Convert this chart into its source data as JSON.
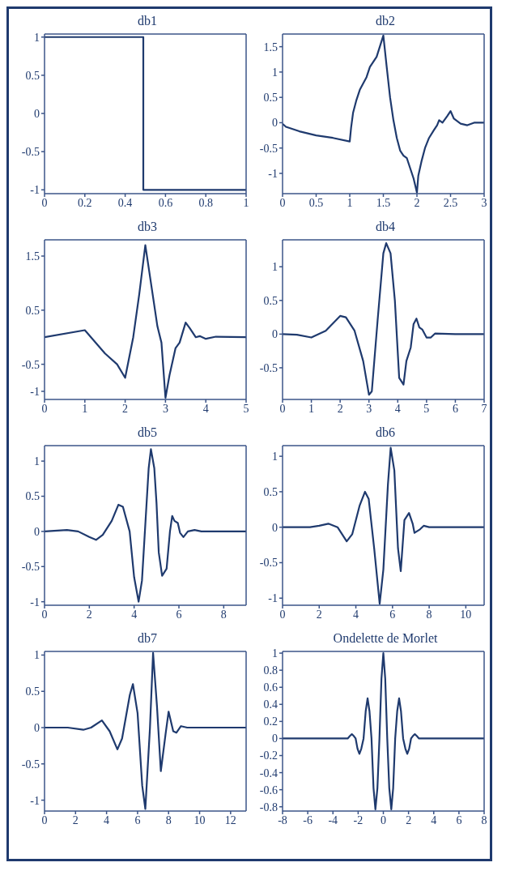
{
  "chart_data": [
    {
      "type": "line",
      "title": "db1",
      "color": "#1f3a6e",
      "xlim": [
        0,
        1
      ],
      "xticks": [
        0,
        0.2,
        0.4,
        0.6,
        0.8,
        1
      ],
      "ylim": [
        -1.05,
        1.04
      ],
      "yticks": [
        -1,
        -0.5,
        0,
        0.5,
        1
      ],
      "x": [
        0,
        0.49,
        0.49,
        1
      ],
      "values": [
        1,
        1,
        -1,
        -1
      ]
    },
    {
      "type": "line",
      "title": "db2",
      "color": "#1f3a6e",
      "xlim": [
        0,
        3
      ],
      "xticks": [
        0,
        0.5,
        1,
        1.5,
        2,
        2.5,
        3
      ],
      "ylim": [
        -1.4,
        1.75
      ],
      "yticks": [
        -1,
        -0.5,
        0,
        0.5,
        1,
        1.5
      ],
      "x": [
        0,
        0.05,
        0.25,
        0.5,
        0.75,
        1,
        1.02,
        1.05,
        1.1,
        1.15,
        1.25,
        1.3,
        1.4,
        1.5,
        1.55,
        1.6,
        1.65,
        1.7,
        1.75,
        1.8,
        1.85,
        1.9,
        1.95,
        2,
        2.02,
        2.07,
        2.12,
        2.18,
        2.25,
        2.3,
        2.33,
        2.38,
        2.45,
        2.5,
        2.55,
        2.65,
        2.75,
        2.85,
        3
      ],
      "values": [
        -0.02,
        -0.08,
        -0.17,
        -0.25,
        -0.3,
        -0.37,
        -0.1,
        0.2,
        0.45,
        0.65,
        0.9,
        1.1,
        1.3,
        1.72,
        1.1,
        0.5,
        0.05,
        -0.3,
        -0.55,
        -0.65,
        -0.7,
        -0.9,
        -1.1,
        -1.38,
        -1.05,
        -0.75,
        -0.5,
        -0.3,
        -0.15,
        -0.05,
        0.05,
        0,
        0.13,
        0.23,
        0.08,
        -0.02,
        -0.05,
        0,
        0
      ]
    },
    {
      "type": "line",
      "title": "db3",
      "color": "#1f3a6e",
      "xlim": [
        0,
        5
      ],
      "xticks": [
        0,
        1,
        2,
        3,
        4,
        5
      ],
      "ylim": [
        -1.15,
        1.8
      ],
      "yticks": [
        -1,
        -0.5,
        0.5,
        1.5
      ],
      "x": [
        0,
        1,
        1.5,
        1.8,
        2,
        2.2,
        2.35,
        2.5,
        2.7,
        2.8,
        2.9,
        3,
        3.1,
        3.25,
        3.35,
        3.5,
        3.6,
        3.75,
        3.85,
        4,
        4.25,
        5
      ],
      "values": [
        0,
        0.13,
        -0.3,
        -0.5,
        -0.75,
        0,
        0.8,
        1.7,
        0.7,
        0.2,
        -0.1,
        -1.12,
        -0.7,
        -0.2,
        -0.1,
        0.27,
        0.17,
        0,
        0.02,
        -0.03,
        0.01,
        0
      ]
    },
    {
      "type": "line",
      "title": "db4",
      "color": "#1f3a6e",
      "xlim": [
        0,
        7
      ],
      "xticks": [
        0,
        1,
        2,
        3,
        4,
        5,
        6,
        7
      ],
      "ylim": [
        -0.97,
        1.4
      ],
      "yticks": [
        -0.5,
        0,
        0.5,
        1
      ],
      "x": [
        0,
        0.5,
        1,
        1.5,
        2,
        2.2,
        2.5,
        2.8,
        3,
        3.1,
        3.3,
        3.5,
        3.6,
        3.75,
        3.9,
        4.05,
        4.2,
        4.3,
        4.45,
        4.55,
        4.65,
        4.75,
        4.85,
        5,
        5.15,
        5.3,
        6,
        7
      ],
      "values": [
        0,
        -0.01,
        -0.05,
        0.05,
        0.27,
        0.25,
        0.05,
        -0.4,
        -0.9,
        -0.85,
        0.2,
        1.2,
        1.35,
        1.2,
        0.5,
        -0.65,
        -0.75,
        -0.4,
        -0.2,
        0.15,
        0.23,
        0.1,
        0.07,
        -0.05,
        -0.05,
        0.01,
        0,
        0
      ]
    },
    {
      "type": "line",
      "title": "db5",
      "color": "#1f3a6e",
      "xlim": [
        0,
        9
      ],
      "xticks": [
        0,
        2,
        4,
        6,
        8
      ],
      "ylim": [
        -1.05,
        1.22
      ],
      "yticks": [
        -1,
        -0.5,
        0,
        0.5,
        1
      ],
      "x": [
        0,
        1,
        1.5,
        2,
        2.3,
        2.6,
        3,
        3.3,
        3.5,
        3.8,
        4,
        4.2,
        4.35,
        4.5,
        4.65,
        4.75,
        4.9,
        5,
        5.1,
        5.25,
        5.45,
        5.6,
        5.7,
        5.8,
        5.95,
        6.05,
        6.2,
        6.4,
        6.7,
        7,
        9
      ],
      "values": [
        0,
        0.02,
        0,
        -0.08,
        -0.12,
        -0.05,
        0.15,
        0.38,
        0.35,
        0,
        -0.65,
        -1,
        -0.7,
        0.1,
        0.9,
        1.17,
        0.9,
        0.4,
        -0.3,
        -0.63,
        -0.53,
        0,
        0.22,
        0.15,
        0.12,
        -0.02,
        -0.08,
        0,
        0.02,
        0,
        0
      ]
    },
    {
      "type": "line",
      "title": "db6",
      "color": "#1f3a6e",
      "xlim": [
        0,
        11
      ],
      "xticks": [
        0,
        2,
        4,
        6,
        8,
        10
      ],
      "ylim": [
        -1.1,
        1.15
      ],
      "yticks": [
        -1,
        -0.5,
        0,
        0.5,
        1
      ],
      "x": [
        0,
        1.5,
        2,
        2.5,
        3,
        3.5,
        3.8,
        4.2,
        4.5,
        4.7,
        5,
        5.3,
        5.5,
        5.75,
        5.9,
        6.1,
        6.3,
        6.45,
        6.65,
        6.9,
        7.1,
        7.2,
        7.5,
        7.7,
        8,
        11
      ],
      "values": [
        0,
        0,
        0.02,
        0.05,
        0,
        -0.2,
        -0.1,
        0.3,
        0.5,
        0.4,
        -0.3,
        -1.08,
        -0.6,
        0.6,
        1.12,
        0.8,
        -0.3,
        -0.62,
        0.1,
        0.2,
        0.05,
        -0.08,
        -0.03,
        0.02,
        0,
        0
      ]
    },
    {
      "type": "line",
      "title": "db7",
      "color": "#1f3a6e",
      "xlim": [
        0,
        13
      ],
      "xticks": [
        0,
        2,
        4,
        6,
        8,
        10,
        12
      ],
      "ylim": [
        -1.15,
        1.05
      ],
      "yticks": [
        -1,
        -0.5,
        0,
        0.5,
        1
      ],
      "x": [
        0,
        1.5,
        2.5,
        3,
        3.7,
        4.2,
        4.7,
        5,
        5.5,
        5.7,
        6,
        6.3,
        6.5,
        6.8,
        7,
        7.25,
        7.5,
        7.8,
        8,
        8.3,
        8.5,
        8.8,
        9.2,
        13
      ],
      "values": [
        0,
        0,
        -0.03,
        0,
        0.1,
        -0.05,
        -0.3,
        -0.15,
        0.45,
        0.6,
        0.2,
        -0.8,
        -1.12,
        0,
        1.03,
        0.3,
        -0.6,
        -0.1,
        0.22,
        -0.05,
        -0.07,
        0.02,
        0,
        0
      ]
    },
    {
      "type": "line",
      "title": "Ondelette de Morlet",
      "color": "#1f3a6e",
      "xlim": [
        -8,
        8
      ],
      "xticks": [
        -8,
        -6,
        -4,
        -2,
        0,
        2,
        4,
        6,
        8
      ],
      "ylim": [
        -0.85,
        1.02
      ],
      "yticks": [
        -0.8,
        -0.6,
        -0.4,
        -0.2,
        0,
        0.2,
        0.4,
        0.6,
        0.8,
        1
      ],
      "x": [
        -8,
        -3.2,
        -2.83,
        -2.65,
        -2.5,
        -2.35,
        -2.2,
        -2.05,
        -1.9,
        -1.75,
        -1.57,
        -1.4,
        -1.25,
        -1.1,
        -0.94,
        -0.78,
        -0.63,
        -0.47,
        -0.31,
        -0.15,
        0,
        0.15,
        0.31,
        0.47,
        0.63,
        0.78,
        0.94,
        1.1,
        1.25,
        1.4,
        1.57,
        1.75,
        1.9,
        2.05,
        2.2,
        2.35,
        2.5,
        2.65,
        2.83,
        3.2,
        8
      ],
      "values": [
        0,
        0,
        0,
        0.03,
        0.05,
        0.03,
        0,
        -0.12,
        -0.18,
        -0.12,
        0,
        0.32,
        0.47,
        0.32,
        0,
        -0.58,
        -0.83,
        -0.58,
        0,
        0.7,
        1,
        0.7,
        0,
        -0.58,
        -0.83,
        -0.58,
        0,
        0.32,
        0.47,
        0.32,
        0,
        -0.12,
        -0.18,
        -0.12,
        0,
        0.03,
        0.05,
        0.03,
        0,
        0,
        0
      ]
    }
  ]
}
